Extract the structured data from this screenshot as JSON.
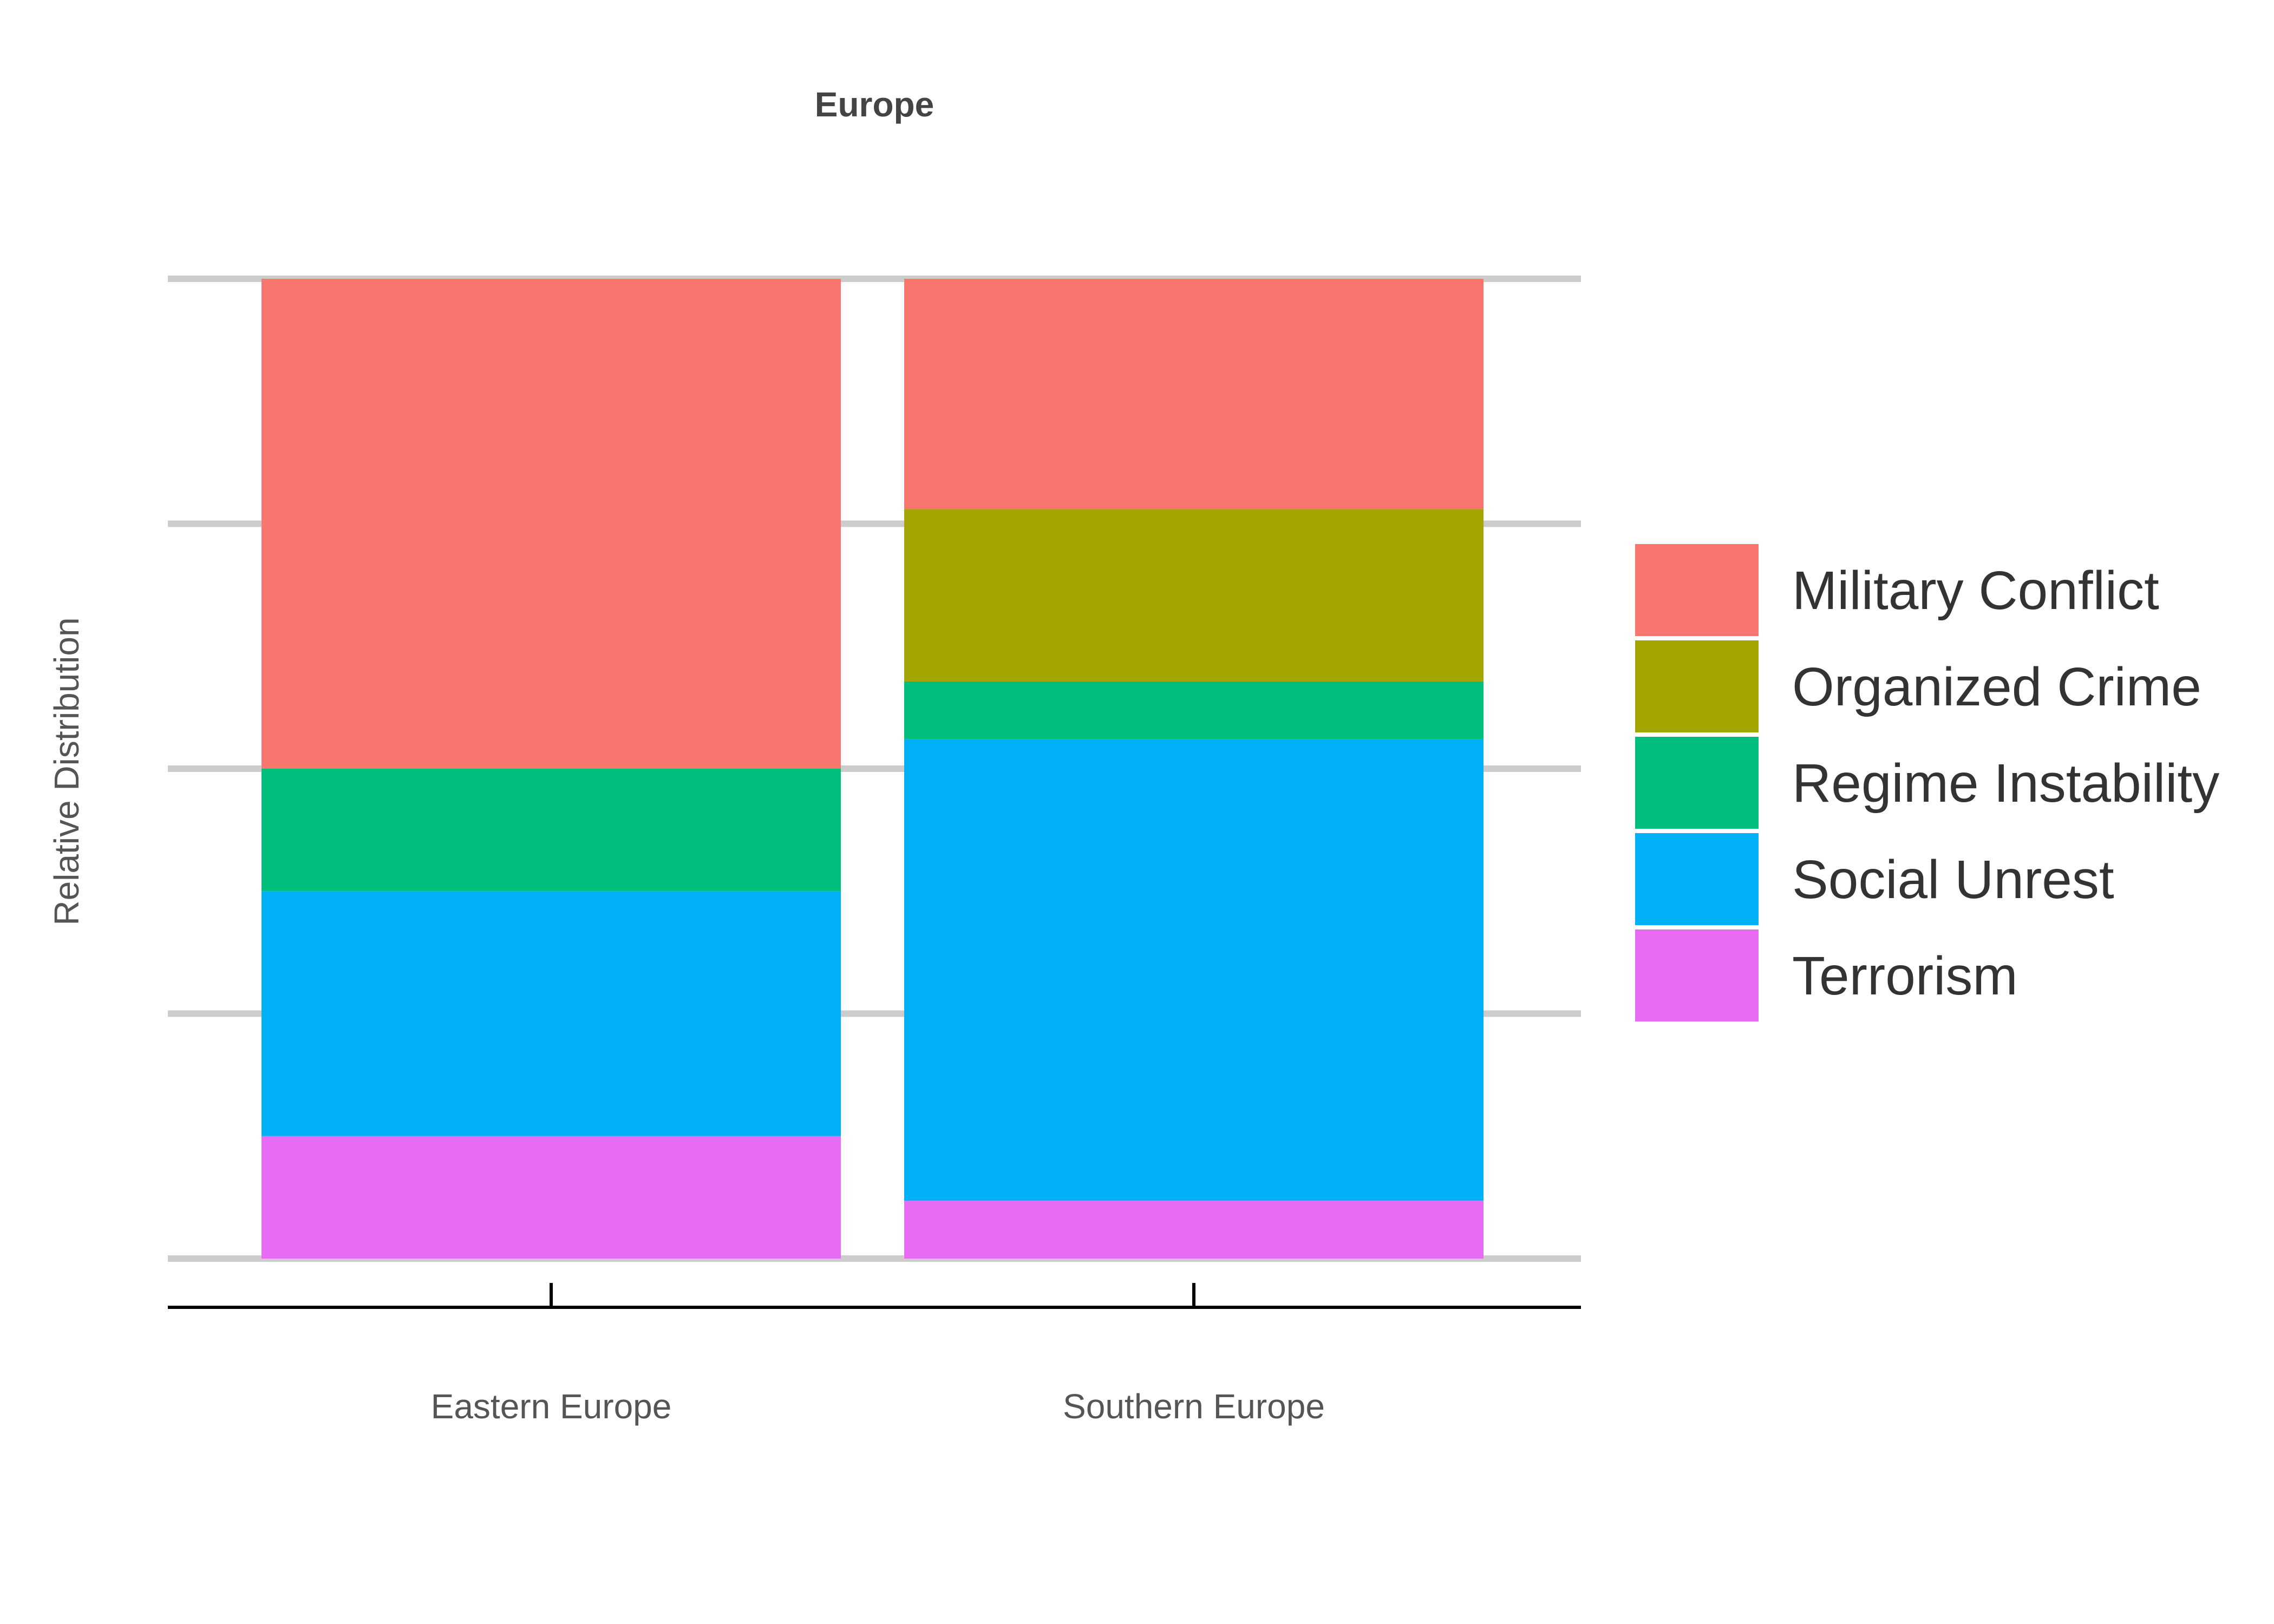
{
  "chart_data": {
    "type": "bar",
    "stacked": true,
    "normalized": true,
    "title": "Europe",
    "xlabel": "",
    "ylabel": "Relative Distribution",
    "ylim": [
      0,
      1
    ],
    "y_tick_labels_shown": false,
    "grid": true,
    "legend_position": "right",
    "categories": [
      "Eastern Europe",
      "Southern Europe"
    ],
    "series": [
      {
        "name": "Terrorism",
        "color": "#E76BF3",
        "values": [
          0.125,
          0.059
        ]
      },
      {
        "name": "Social Unrest",
        "color": "#00B0F6",
        "values": [
          0.25,
          0.471
        ]
      },
      {
        "name": "Regime Instability",
        "color": "#00BF7D",
        "values": [
          0.125,
          0.059
        ]
      },
      {
        "name": "Organized Crime",
        "color": "#A3A500",
        "values": [
          0.0,
          0.176
        ]
      },
      {
        "name": "Military Conflict",
        "color": "#F8766D",
        "values": [
          0.5,
          0.235
        ]
      }
    ],
    "legend_order": [
      "Military Conflict",
      "Organized Crime",
      "Regime Instability",
      "Social Unrest",
      "Terrorism"
    ]
  }
}
